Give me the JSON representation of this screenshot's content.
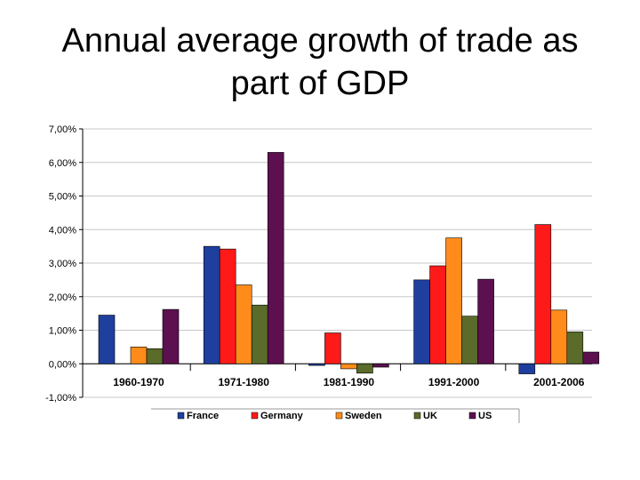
{
  "slide": {
    "title_line1": "Annual average growth of trade as",
    "title_line2": "part of GDP"
  },
  "chart_data": {
    "type": "bar",
    "title": "Annual average growth of trade as part of GDP",
    "xlabel": "",
    "ylabel": "",
    "ylim": [
      -1,
      7
    ],
    "yticks": [
      7,
      6,
      5,
      4,
      3,
      2,
      1,
      0,
      -1
    ],
    "ytick_labels": [
      "7,00%",
      "6,00%",
      "5,00%",
      "4,00%",
      "3,00%",
      "2,00%",
      "1,00%",
      "0,00%",
      "-1,00%"
    ],
    "categories": [
      "1960-1970",
      "1971-1980",
      "1981-1990",
      "1991-2000",
      "2001-2006"
    ],
    "legend_position": "bottom",
    "series": [
      {
        "name": "France",
        "color": "#1f3f9f",
        "values": [
          1.45,
          3.5,
          -0.05,
          2.5,
          -0.3
        ]
      },
      {
        "name": "Germany",
        "color": "#ff1a1a",
        "values": [
          null,
          3.42,
          0.92,
          2.92,
          4.15
        ]
      },
      {
        "name": "Sweden",
        "color": "#ff8c1a",
        "values": [
          0.5,
          2.35,
          -0.15,
          3.75,
          1.6
        ]
      },
      {
        "name": "UK",
        "color": "#5a6b2a",
        "values": [
          0.45,
          1.75,
          -0.28,
          1.42,
          0.95
        ]
      },
      {
        "name": "US",
        "color": "#5c1050",
        "values": [
          1.62,
          6.3,
          -0.1,
          2.52,
          0.35
        ]
      }
    ]
  }
}
